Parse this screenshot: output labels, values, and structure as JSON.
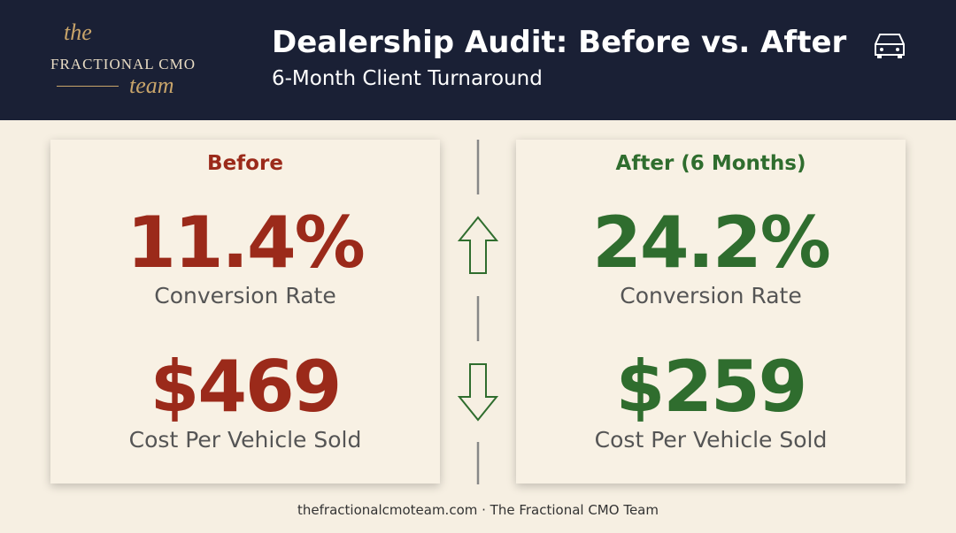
{
  "header": {
    "logo": {
      "top": "the",
      "middle": "FRACTIONAL CMO",
      "bottom": "team"
    },
    "title": "Dealership Audit: Before vs. After",
    "subtitle": "6-Month Client Turnaround"
  },
  "panels": [
    {
      "heading": "Before",
      "metrics": [
        {
          "value": "11.4%",
          "label": "Conversion Rate"
        },
        {
          "value": "$469",
          "label": "Cost Per Vehicle Sold"
        }
      ]
    },
    {
      "heading": "After (6 Months)",
      "metrics": [
        {
          "value": "24.2%",
          "label": "Conversion Rate"
        },
        {
          "value": "$259",
          "label": "Cost Per Vehicle Sold"
        }
      ]
    }
  ],
  "footer": "thefractionalcmoteam.com · The Fractional CMO Team"
}
